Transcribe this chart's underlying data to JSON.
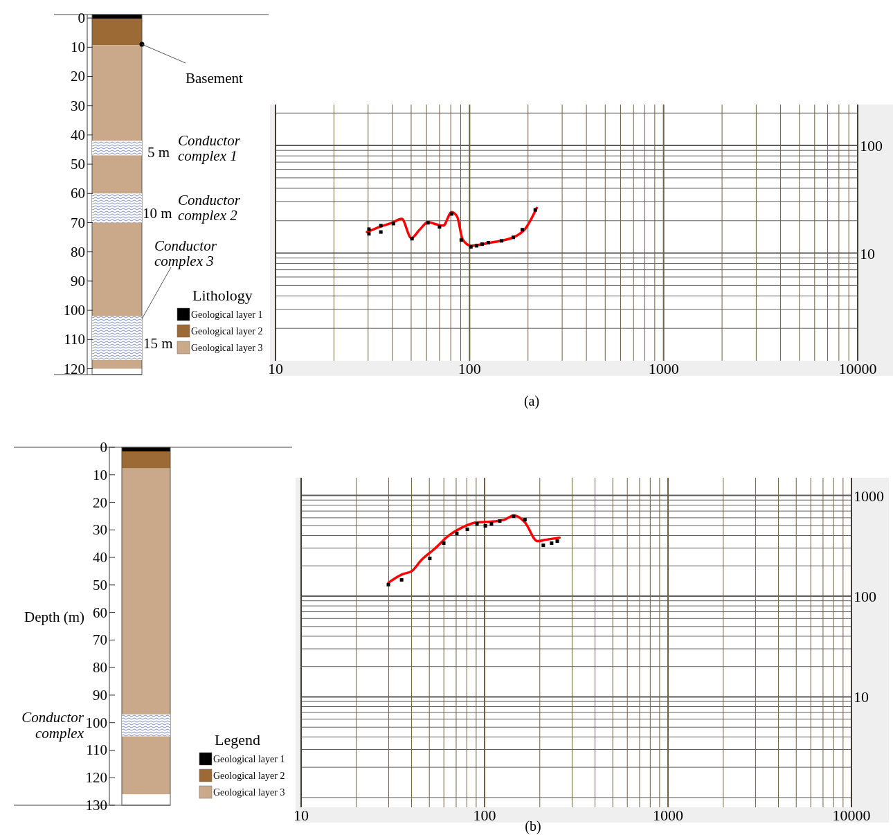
{
  "chart_data": [
    {
      "type": "bar",
      "categories": [
        null
      ],
      "ylim": [
        122,
        -1.2
      ],
      "yticks": [
        0,
        10,
        20,
        30,
        40,
        50,
        60,
        70,
        80,
        90,
        100,
        110,
        120
      ],
      "tick_labels": "y",
      "legend": "bottom right",
      "legend_title": "Lithology",
      "series": [
        {
          "name": "Geological layer 1",
          "color": "#000000",
          "base": [
            -1.2
          ],
          "values": [
            1.4
          ]
        },
        {
          "name": "Geological layer 2",
          "color": "#9c6a35",
          "base": [
            0.2
          ],
          "values": [
            9.1
          ]
        },
        {
          "name": "Geological layer 3",
          "color": "#c9a98a",
          "base": [
            9.3
          ],
          "values": [
            110.7
          ]
        }
      ],
      "bands": [
        {
          "axis": "y",
          "from": 42,
          "to": 47,
          "label": "Conductor complex 1"
        },
        {
          "axis": "y",
          "from": 60,
          "to": 70,
          "label": "Conductor complex 2"
        },
        {
          "axis": "y",
          "from": 102,
          "to": 117,
          "label": "Conductor complex 3"
        }
      ],
      "annotations": [
        "Basement",
        "5 m",
        "10 m",
        "15 m"
      ]
    },
    {
      "type": "line",
      "log": "xy",
      "grid": true,
      "xlim": [
        10,
        10000
      ],
      "xticks": [
        10,
        {
          "value": 20,
          "label": null
        },
        {
          "value": 30,
          "label": null
        },
        {
          "value": 40,
          "label": null
        },
        {
          "value": 50,
          "label": null
        },
        {
          "value": 60,
          "label": null
        },
        {
          "value": 70,
          "label": null
        },
        {
          "value": 80,
          "label": null
        },
        {
          "value": 90,
          "label": null
        },
        100,
        {
          "value": 200,
          "label": null
        },
        {
          "value": 300,
          "label": null
        },
        {
          "value": 400,
          "label": null
        },
        {
          "value": 500,
          "label": null
        },
        {
          "value": 600,
          "label": null
        },
        {
          "value": 700,
          "label": null
        },
        {
          "value": 800,
          "label": null
        },
        {
          "value": 900,
          "label": null
        },
        1000,
        {
          "value": 2000,
          "label": null
        },
        {
          "value": 3000,
          "label": null
        },
        {
          "value": 4000,
          "label": null
        },
        {
          "value": 5000,
          "label": null
        },
        {
          "value": 6000,
          "label": null
        },
        {
          "value": 7000,
          "label": null
        },
        {
          "value": 8000,
          "label": null
        },
        {
          "value": 9000,
          "label": null
        },
        10000
      ],
      "ylim": [
        1,
        240
      ],
      "yticks": [
        {
          "value": 2,
          "label": null
        },
        {
          "value": 3,
          "label": null
        },
        {
          "value": 4,
          "label": null
        },
        {
          "value": 5,
          "label": null
        },
        {
          "value": 6,
          "label": null
        },
        {
          "value": 7,
          "label": null
        },
        {
          "value": 8,
          "label": null
        },
        {
          "value": 9,
          "label": null
        },
        10,
        {
          "value": 20,
          "label": null
        },
        {
          "value": 30,
          "label": null
        },
        {
          "value": 40,
          "label": null
        },
        {
          "value": 50,
          "label": null
        },
        {
          "value": 60,
          "label": null
        },
        {
          "value": 70,
          "label": null
        },
        {
          "value": 80,
          "label": null
        },
        {
          "value": 90,
          "label": null
        },
        100,
        {
          "value": 200,
          "label": null
        }
      ],
      "annotations": [
        "(a)"
      ],
      "series": [
        {
          "type": "scatter",
          "color": "#000000",
          "marker": "square",
          "x": [
            30.3,
            30.3,
            34.9,
            34.9,
            40.5,
            50.5,
            61,
            70,
            80.8,
            90.6,
            101.6,
            108.6,
            116,
            124.9,
            146,
            168,
            187,
            218
          ],
          "values": [
            16.7,
            15.1,
            18,
            15.7,
            18.8,
            13.6,
            19.1,
            17.5,
            23.1,
            13.2,
            11.4,
            11.7,
            12.1,
            12.5,
            13,
            14,
            16.5,
            25.2
          ]
        },
        {
          "type": "line",
          "color": "#ff0000",
          "marker": "none",
          "x": [
            29.6,
            34.3,
            39.8,
            44.7,
            50.1,
            55.3,
            61.1,
            67.4,
            73.2,
            80.8,
            86.3,
            92.1,
            101.6,
            128,
            171,
            193,
            222
          ],
          "values": [
            15.7,
            17.5,
            19.1,
            20.8,
            13.8,
            16.5,
            19.4,
            18.5,
            18,
            24.1,
            21.8,
            13.4,
            11.7,
            12.5,
            14.2,
            16.7,
            26.3
          ]
        }
      ]
    },
    {
      "type": "bar",
      "categories": [
        null
      ],
      "ylim": [
        130,
        0
      ],
      "yticks": [
        0,
        10,
        20,
        30,
        40,
        50,
        60,
        70,
        80,
        90,
        100,
        110,
        120,
        130
      ],
      "tick_labels": "y",
      "legend": "bottom right",
      "legend_title": "Legend",
      "ylabel": "Depth (m)",
      "series": [
        {
          "name": "Geological layer 1",
          "color": "#000000",
          "base": [
            0
          ],
          "values": [
            1.5
          ]
        },
        {
          "name": "Geological layer 2",
          "color": "#9c6a35",
          "base": [
            1.5
          ],
          "values": [
            6.2
          ]
        },
        {
          "name": "Geological layer 3",
          "color": "#c9a98a",
          "base": [
            7.7
          ],
          "values": [
            118.3
          ]
        }
      ],
      "bands": [
        {
          "axis": "y",
          "from": 97,
          "to": 105,
          "label": "Conductor complex"
        }
      ]
    },
    {
      "type": "line",
      "log": "xy",
      "grid": true,
      "xlim": [
        10,
        10000
      ],
      "xticks": [
        10,
        {
          "value": 20,
          "label": null
        },
        {
          "value": 30,
          "label": null
        },
        {
          "value": 40,
          "label": null
        },
        {
          "value": 50,
          "label": null
        },
        {
          "value": 60,
          "label": null
        },
        {
          "value": 70,
          "label": null
        },
        {
          "value": 80,
          "label": null
        },
        {
          "value": 90,
          "label": null
        },
        100,
        {
          "value": 200,
          "label": null
        },
        {
          "value": 300,
          "label": null
        },
        {
          "value": 400,
          "label": null
        },
        {
          "value": 500,
          "label": null
        },
        {
          "value": 600,
          "label": null
        },
        {
          "value": 700,
          "label": null
        },
        {
          "value": 800,
          "label": null
        },
        {
          "value": 900,
          "label": null
        },
        1000,
        {
          "value": 2000,
          "label": null
        },
        {
          "value": 3000,
          "label": null
        },
        {
          "value": 4000,
          "label": null
        },
        {
          "value": 5000,
          "label": null
        },
        {
          "value": 6000,
          "label": null
        },
        {
          "value": 7000,
          "label": null
        },
        {
          "value": 8000,
          "label": null
        },
        {
          "value": 9000,
          "label": null
        },
        10000
      ],
      "ylim": [
        0.8,
        1500
      ],
      "yticks": [
        {
          "value": 1,
          "label": null
        },
        {
          "value": 2,
          "label": null
        },
        {
          "value": 3,
          "label": null
        },
        {
          "value": 4,
          "label": null
        },
        {
          "value": 5,
          "label": null
        },
        {
          "value": 6,
          "label": null
        },
        {
          "value": 7,
          "label": null
        },
        {
          "value": 8,
          "label": null
        },
        {
          "value": 9,
          "label": null
        },
        10,
        {
          "value": 20,
          "label": null
        },
        {
          "value": 30,
          "label": null
        },
        {
          "value": 40,
          "label": null
        },
        {
          "value": 50,
          "label": null
        },
        {
          "value": 60,
          "label": null
        },
        {
          "value": 70,
          "label": null
        },
        {
          "value": 80,
          "label": null
        },
        {
          "value": 90,
          "label": null
        },
        100,
        {
          "value": 200,
          "label": null
        },
        {
          "value": 300,
          "label": null
        },
        {
          "value": 400,
          "label": null
        },
        {
          "value": 500,
          "label": null
        },
        {
          "value": 600,
          "label": null
        },
        {
          "value": 700,
          "label": null
        },
        {
          "value": 800,
          "label": null
        },
        {
          "value": 900,
          "label": null
        },
        1000
      ],
      "annotations": [
        "(b)"
      ],
      "series": [
        {
          "type": "scatter",
          "color": "#000000",
          "marker": "square",
          "x": [
            29.9,
            35.3,
            50.3,
            59.9,
            70.6,
            80.5,
            90.9,
            101,
            109,
            121,
            144,
            166,
            209,
            232,
            249
          ],
          "values": [
            130,
            145,
            237,
            336,
            419,
            461,
            523,
            499,
            523,
            557,
            622,
            575,
            320,
            336,
            352
          ]
        },
        {
          "type": "line",
          "color": "#ff0000",
          "marker": "none",
          "x": [
            29.9,
            35.3,
            40.2,
            45,
            53.5,
            63.7,
            75.7,
            90.2,
            107,
            128,
            145,
            166,
            194,
            215,
            256
          ],
          "values": [
            136,
            164,
            178,
            226,
            296,
            399,
            483,
            540,
            548,
            575,
            632,
            540,
            352,
            363,
            381
          ]
        }
      ]
    }
  ]
}
